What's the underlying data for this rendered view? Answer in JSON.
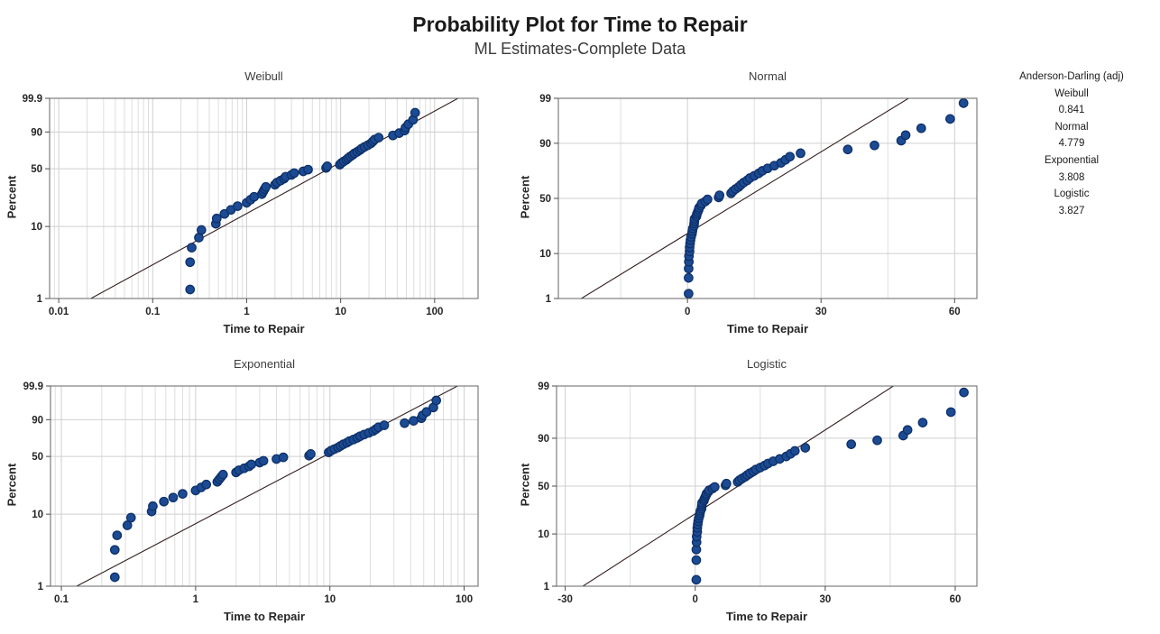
{
  "title": "Probability Plot for Time to Repair",
  "subtitle": "ML Estimates-Complete Data",
  "legend": {
    "title": "Anderson-Darling (adj)",
    "entries": [
      {
        "label": "Weibull",
        "value": "0.841"
      },
      {
        "label": "Normal",
        "value": "4.779"
      },
      {
        "label": "Exponential",
        "value": "3.808"
      },
      {
        "label": "Logistic",
        "value": "3.827"
      }
    ]
  },
  "chart_data": {
    "type": "scatter",
    "chart_kind": "probability-plot-matrix",
    "xlabel": "Time to Repair",
    "ylabel": "Percent",
    "times": [
      0.25,
      0.25,
      0.26,
      0.31,
      0.33,
      0.47,
      0.48,
      0.58,
      0.68,
      0.8,
      1.0,
      1.1,
      1.2,
      1.45,
      1.5,
      1.55,
      1.6,
      2.0,
      2.1,
      2.3,
      2.5,
      2.6,
      3.0,
      3.2,
      4.0,
      4.5,
      7.0,
      7.2,
      9.8,
      10.2,
      10.8,
      11.5,
      12.0,
      12.6,
      13.4,
      14.0,
      15.0,
      16.0,
      16.8,
      18.0,
      19.5,
      21.0,
      22.0,
      23.0,
      25.4,
      36.0,
      42.0,
      48.0,
      49.0,
      52.5,
      59.0,
      62.0
    ],
    "percents": [
      1.34,
      3.24,
      5.15,
      7.06,
      8.97,
      10.88,
      12.79,
      14.69,
      16.6,
      18.51,
      20.42,
      22.33,
      24.24,
      26.15,
      28.05,
      29.96,
      31.87,
      33.78,
      35.69,
      37.6,
      39.5,
      41.41,
      43.32,
      45.23,
      47.14,
      49.05,
      50.95,
      52.86,
      54.77,
      56.68,
      58.59,
      60.5,
      62.4,
      64.31,
      66.22,
      68.13,
      70.04,
      71.95,
      73.85,
      75.76,
      77.67,
      79.58,
      81.49,
      83.4,
      85.31,
      87.21,
      89.12,
      91.03,
      92.94,
      94.85,
      96.76,
      98.66
    ],
    "panels": [
      {
        "key": "weibull",
        "title": "Weibull",
        "x_scale": "log",
        "x_range": [
          0.008,
          290
        ],
        "x_major_ticks": [
          {
            "v": 0.01,
            "label": "0.01"
          },
          {
            "v": 0.1,
            "label": "0.1"
          },
          {
            "v": 1,
            "label": "1"
          },
          {
            "v": 10,
            "label": "10"
          },
          {
            "v": 100,
            "label": "100"
          }
        ],
        "y_ticks": [
          {
            "v": 1,
            "label": "1"
          },
          {
            "v": 10,
            "label": "10"
          },
          {
            "v": 50,
            "label": "50"
          },
          {
            "v": 90,
            "label": "90"
          },
          {
            "v": 99.9,
            "label": "99.9"
          }
        ],
        "y_range": [
          1,
          99.9
        ],
        "prob": "weibull",
        "fit": {
          "shape": 0.726,
          "scale": 12.4
        }
      },
      {
        "key": "normal",
        "title": "Normal",
        "x_scale": "linear",
        "x_range": [
          -29,
          65
        ],
        "x_major_ticks": [
          {
            "v": 0,
            "label": "0"
          },
          {
            "v": 30,
            "label": "30"
          },
          {
            "v": 60,
            "label": "60"
          }
        ],
        "x_minor_ticks": [
          -15,
          15,
          45
        ],
        "y_ticks": [
          {
            "v": 1,
            "label": "1"
          },
          {
            "v": 10,
            "label": "10"
          },
          {
            "v": 50,
            "label": "50"
          },
          {
            "v": 90,
            "label": "90"
          },
          {
            "v": 99,
            "label": "99"
          }
        ],
        "y_range": [
          1,
          99
        ],
        "prob": "probit",
        "fit": {
          "mean": 12.9,
          "sd": 15.8
        }
      },
      {
        "key": "exponential",
        "title": "Exponential",
        "x_scale": "log",
        "x_range": [
          0.083,
          127
        ],
        "x_major_ticks": [
          {
            "v": 0.1,
            "label": "0.1"
          },
          {
            "v": 1,
            "label": "1"
          },
          {
            "v": 10,
            "label": "10"
          },
          {
            "v": 100,
            "label": "100"
          }
        ],
        "y_ticks": [
          {
            "v": 1,
            "label": "1"
          },
          {
            "v": 10,
            "label": "10"
          },
          {
            "v": 50,
            "label": "50"
          },
          {
            "v": 90,
            "label": "90"
          },
          {
            "v": 99.9,
            "label": "99.9"
          }
        ],
        "y_range": [
          1,
          99.9
        ],
        "prob": "weibull",
        "fit": {
          "mean": 12.93
        }
      },
      {
        "key": "logistic",
        "title": "Logistic",
        "x_scale": "linear",
        "x_range": [
          -32,
          65
        ],
        "x_major_ticks": [
          {
            "v": -30,
            "label": "-30"
          },
          {
            "v": 0,
            "label": "0"
          },
          {
            "v": 30,
            "label": "30"
          },
          {
            "v": 60,
            "label": "60"
          }
        ],
        "x_minor_ticks": [
          -15,
          15,
          45
        ],
        "y_ticks": [
          {
            "v": 1,
            "label": "1"
          },
          {
            "v": 10,
            "label": "10"
          },
          {
            "v": 50,
            "label": "50"
          },
          {
            "v": 90,
            "label": "90"
          },
          {
            "v": 99,
            "label": "99"
          }
        ],
        "y_range": [
          1,
          99
        ],
        "prob": "logit",
        "fit": {
          "location": 9.9,
          "scale": 7.8
        }
      }
    ],
    "colors": {
      "point_fill": "#1c4b94",
      "point_edge": "#0d3068",
      "fit_line": "#331f1f",
      "grid_major": "#cfcfcf",
      "grid_minor": "#dedede",
      "frame": "#666666",
      "tick": "#4d4d4d"
    }
  }
}
